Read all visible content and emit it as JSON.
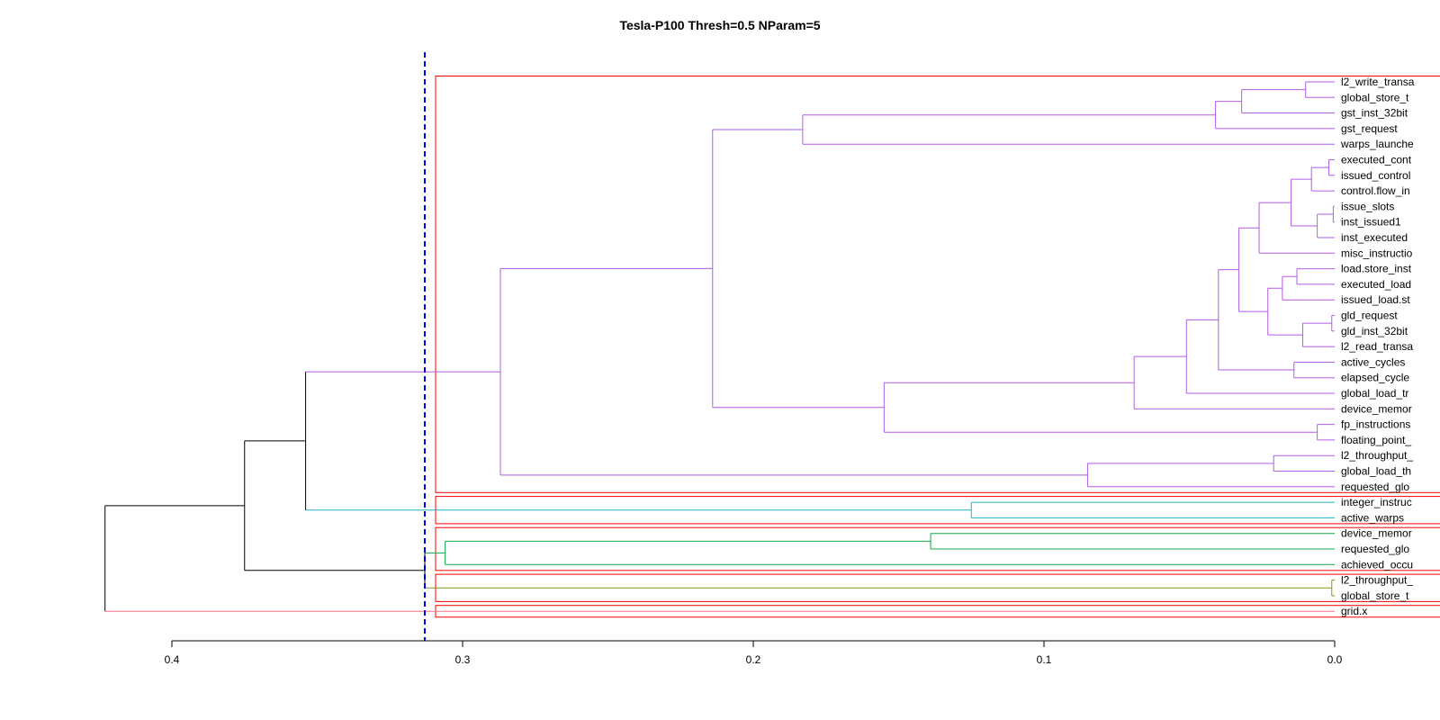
{
  "chart_data": {
    "type": "dendrogram",
    "title": "Tesla-P100 Thresh=0.5 NParam=5",
    "xlabel": "",
    "ylabel": "",
    "xlim": [
      0.4,
      0.0
    ],
    "x_ticks": [
      "0.4",
      "0.3",
      "0.2",
      "0.1",
      "0.0"
    ],
    "x_tick_values": [
      0.4,
      0.3,
      0.2,
      0.1,
      0.0
    ],
    "cut_threshold": 0.313,
    "leaves": [
      "l2_write_transa",
      "global_store_t",
      "gst_inst_32bit",
      "gst_request",
      "warps_launche",
      "executed_cont",
      "issued_control",
      "control.flow_in",
      "issue_slots",
      "inst_issued1",
      "inst_executed",
      "misc_instructio",
      "load.store_inst",
      "executed_load",
      "issued_load.st",
      "gld_request",
      "gld_inst_32bit",
      "l2_read_transa",
      "active_cycles",
      "elapsed_cycle",
      "global_load_tr",
      "device_memor",
      "fp_instructions",
      "floating_point_",
      "l2_throughput_",
      "global_load_th",
      "requested_glo",
      "integer_instruc",
      "active_warps",
      "device_memor",
      "requested_glo",
      "achieved_occu",
      "l2_throughput_",
      "global_store_t",
      "grid.x"
    ],
    "merges": [
      {
        "a": "L0",
        "b": "L1",
        "height": 0.01,
        "id": "P1"
      },
      {
        "a": "P1",
        "b": "L2",
        "height": 0.032,
        "id": "P2"
      },
      {
        "a": "P2",
        "b": "L3",
        "height": 0.041,
        "id": "P3"
      },
      {
        "a": "P3",
        "b": "L4",
        "height": 0.183,
        "id": "P4"
      },
      {
        "a": "L5",
        "b": "L6",
        "height": 0.002,
        "id": "Q1"
      },
      {
        "a": "Q1",
        "b": "L7",
        "height": 0.008,
        "id": "Q2"
      },
      {
        "a": "L8",
        "b": "L9",
        "height": 0.0005,
        "id": "Q3"
      },
      {
        "a": "Q3",
        "b": "L10",
        "height": 0.006,
        "id": "Q4"
      },
      {
        "a": "Q2",
        "b": "Q4",
        "height": 0.015,
        "id": "Q5"
      },
      {
        "a": "Q5",
        "b": "L11",
        "height": 0.026,
        "id": "Q6"
      },
      {
        "a": "L12",
        "b": "L13",
        "height": 0.013,
        "id": "R1"
      },
      {
        "a": "R1",
        "b": "L14",
        "height": 0.018,
        "id": "R2"
      },
      {
        "a": "L15",
        "b": "L16",
        "height": 0.001,
        "id": "R3"
      },
      {
        "a": "R3",
        "b": "L17",
        "height": 0.011,
        "id": "R4"
      },
      {
        "a": "R2",
        "b": "R4",
        "height": 0.023,
        "id": "R5"
      },
      {
        "a": "Q6",
        "b": "R5",
        "height": 0.033,
        "id": "R6"
      },
      {
        "a": "L18",
        "b": "L19",
        "height": 0.014,
        "id": "R7"
      },
      {
        "a": "R6",
        "b": "R7",
        "height": 0.04,
        "id": "R8"
      },
      {
        "a": "R8",
        "b": "L20",
        "height": 0.051,
        "id": "R9"
      },
      {
        "a": "R9",
        "b": "L21",
        "height": 0.069,
        "id": "R10"
      },
      {
        "a": "L22",
        "b": "L23",
        "height": 0.006,
        "id": "S1"
      },
      {
        "a": "R10",
        "b": "S1",
        "height": 0.155,
        "id": "S2"
      },
      {
        "a": "P4",
        "b": "S2",
        "height": 0.214,
        "id": "S3"
      },
      {
        "a": "L24",
        "b": "L25",
        "height": 0.021,
        "id": "T1"
      },
      {
        "a": "T1",
        "b": "L26",
        "height": 0.085,
        "id": "T2"
      },
      {
        "a": "S3",
        "b": "T2",
        "height": 0.287,
        "id": "T3"
      },
      {
        "a": "L27",
        "b": "L28",
        "height": 0.125,
        "id": "U1"
      },
      {
        "a": "T3",
        "b": "U1",
        "height": 0.354,
        "id": "U2"
      },
      {
        "a": "L29",
        "b": "L30",
        "height": 0.139,
        "id": "V1"
      },
      {
        "a": "V1",
        "b": "L31",
        "height": 0.306,
        "id": "V2"
      },
      {
        "a": "L32",
        "b": "L33",
        "height": 0.001,
        "id": "W1"
      },
      {
        "a": "V2",
        "b": "W1",
        "height": 0.313,
        "id": "W2"
      },
      {
        "a": "U2",
        "b": "W2",
        "height": 0.375,
        "id": "X1"
      },
      {
        "a": "X1",
        "b": "L34",
        "height": 0.423,
        "id": "ROOT"
      }
    ],
    "clusters": [
      {
        "first": 0,
        "last": 26,
        "color": "#b05ce6"
      },
      {
        "first": 27,
        "last": 28,
        "color": "#20b2c4"
      },
      {
        "first": 29,
        "last": 31,
        "color": "#12a84a"
      },
      {
        "first": 32,
        "last": 33,
        "color": "#7a9a1a"
      },
      {
        "first": 34,
        "last": 34,
        "color": "#ff6e8a"
      }
    ],
    "colors": {
      "upper_link": "#000000",
      "cluster_box": "#ff0000",
      "threshold_line": "#0000ff"
    }
  }
}
